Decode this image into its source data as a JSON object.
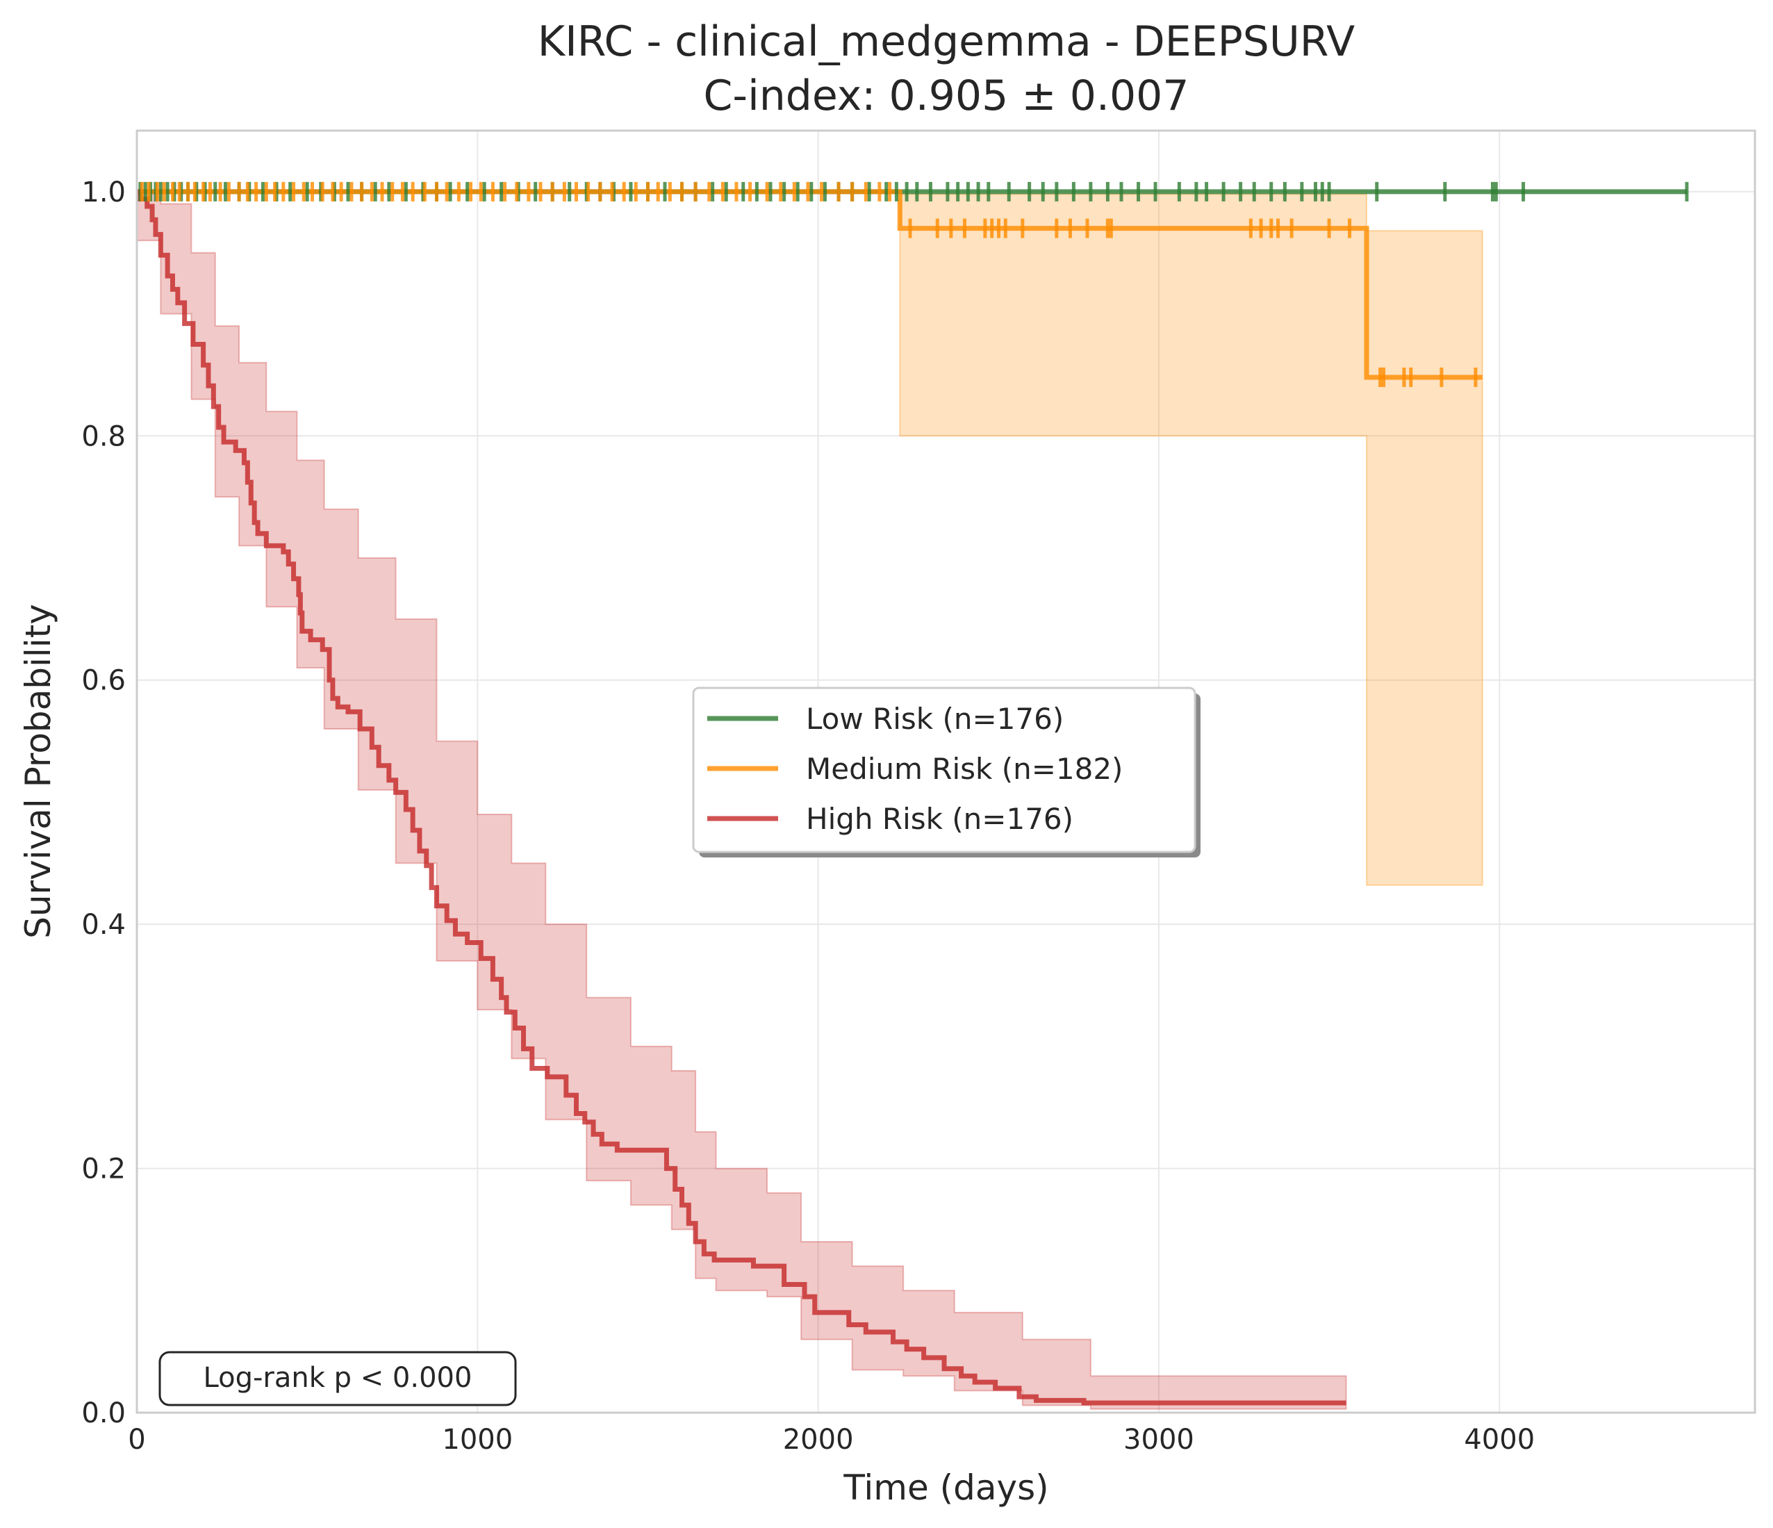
{
  "chart_data": {
    "type": "line",
    "title": "KIRC - clinical_medgemma - DEEPSURV",
    "subtitle": "C-index: 0.905 ± 0.007",
    "xlabel": "Time (days)",
    "ylabel": "Survival Probability",
    "xlim": [
      0,
      4750
    ],
    "ylim": [
      0,
      1.05
    ],
    "x_ticks": [
      0,
      1000,
      2000,
      3000,
      4000
    ],
    "x_tick_labels": [
      "0",
      "1000",
      "2000",
      "3000",
      "4000"
    ],
    "y_ticks": [
      0,
      0.2,
      0.4,
      0.6,
      0.8,
      1.0
    ],
    "y_tick_labels": [
      "0.0",
      "0.2",
      "0.4",
      "0.6",
      "0.8",
      "1.0"
    ],
    "grid": true,
    "legend_position": "center",
    "annotation": "Log-rank p < 0.000",
    "series": [
      {
        "name": "Low Risk (n=176)",
        "color": "#2e7d32",
        "steps": [
          [
            0,
            1.0
          ],
          [
            4550,
            1.0
          ]
        ],
        "ci": [],
        "censor_times": [
          10,
          25,
          40,
          55,
          70,
          90,
          110,
          130,
          150,
          175,
          200,
          230,
          260,
          300,
          330,
          370,
          410,
          450,
          500,
          540,
          580,
          620,
          660,
          700,
          740,
          790,
          840,
          880,
          920,
          970,
          1020,
          1070,
          1120,
          1170,
          1220,
          1270,
          1320,
          1360,
          1400,
          1450,
          1500,
          1550,
          1600,
          1640,
          1690,
          1730,
          1780,
          1820,
          1860,
          1900,
          1940,
          1980,
          2020,
          2060,
          2100,
          2150,
          2200,
          2230,
          2260,
          2290,
          2330,
          2380,
          2410,
          2440,
          2470,
          2500,
          2560,
          2620,
          2660,
          2700,
          2750,
          2800,
          2850,
          2890,
          2940,
          2990,
          3060,
          3110,
          3140,
          3190,
          3240,
          3280,
          3330,
          3370,
          3420,
          3460,
          3480,
          3500,
          3640,
          3840,
          3980,
          3990,
          4070,
          4550
        ]
      },
      {
        "name": "Medium Risk (n=182)",
        "color": "#ff8c00",
        "steps": [
          [
            0,
            1.0
          ],
          [
            2240,
            1.0
          ],
          [
            2240,
            0.97
          ],
          [
            3610,
            0.97
          ],
          [
            3610,
            0.848
          ],
          [
            3950,
            0.848
          ]
        ],
        "ci": [
          [
            2240,
            0.8,
            0.998
          ],
          [
            3610,
            0.8,
            0.998
          ],
          [
            3610,
            0.432,
            0.968
          ],
          [
            3950,
            0.432,
            0.968
          ]
        ],
        "censor_times": [
          15,
          35,
          60,
          80,
          105,
          125,
          150,
          170,
          195,
          215,
          245,
          270,
          300,
          325,
          350,
          380,
          405,
          430,
          460,
          490,
          515,
          545,
          575,
          600,
          630,
          660,
          690,
          720,
          750,
          780,
          810,
          845,
          880,
          910,
          945,
          980,
          1010,
          1045,
          1080,
          1115,
          1150,
          1185,
          1220,
          1255,
          1290,
          1325,
          1360,
          1395,
          1430,
          1465,
          1500,
          1530,
          1565,
          1600,
          1640,
          1680,
          1720,
          1760,
          1800,
          1850,
          1890,
          1930,
          1970,
          2010,
          2060,
          2100,
          2140,
          2180,
          2210,
          2270,
          2350,
          2390,
          2430,
          2490,
          2510,
          2530,
          2550,
          2600,
          2700,
          2740,
          2790,
          2850,
          2860,
          3270,
          3300,
          3330,
          3350,
          3390,
          3500,
          3560,
          3650,
          3660,
          3720,
          3740,
          3830,
          3930
        ]
      },
      {
        "name": "High Risk (n=176)",
        "color": "#c62828",
        "steps": [
          [
            0,
            1.0
          ],
          [
            10,
            0.994
          ],
          [
            30,
            0.988
          ],
          [
            45,
            0.977
          ],
          [
            55,
            0.965
          ],
          [
            70,
            0.948
          ],
          [
            90,
            0.931
          ],
          [
            105,
            0.92
          ],
          [
            120,
            0.909
          ],
          [
            140,
            0.892
          ],
          [
            165,
            0.875
          ],
          [
            195,
            0.858
          ],
          [
            210,
            0.841
          ],
          [
            225,
            0.824
          ],
          [
            240,
            0.807
          ],
          [
            255,
            0.795
          ],
          [
            290,
            0.788
          ],
          [
            315,
            0.778
          ],
          [
            325,
            0.762
          ],
          [
            335,
            0.745
          ],
          [
            345,
            0.729
          ],
          [
            355,
            0.72
          ],
          [
            380,
            0.71
          ],
          [
            430,
            0.705
          ],
          [
            445,
            0.695
          ],
          [
            460,
            0.683
          ],
          [
            475,
            0.67
          ],
          [
            480,
            0.655
          ],
          [
            485,
            0.64
          ],
          [
            510,
            0.633
          ],
          [
            545,
            0.625
          ],
          [
            565,
            0.6
          ],
          [
            575,
            0.585
          ],
          [
            590,
            0.578
          ],
          [
            620,
            0.574
          ],
          [
            655,
            0.56
          ],
          [
            690,
            0.545
          ],
          [
            710,
            0.53
          ],
          [
            740,
            0.518
          ],
          [
            760,
            0.508
          ],
          [
            790,
            0.494
          ],
          [
            810,
            0.477
          ],
          [
            830,
            0.46
          ],
          [
            850,
            0.448
          ],
          [
            865,
            0.43
          ],
          [
            880,
            0.415
          ],
          [
            910,
            0.403
          ],
          [
            935,
            0.392
          ],
          [
            970,
            0.385
          ],
          [
            1010,
            0.372
          ],
          [
            1045,
            0.355
          ],
          [
            1070,
            0.34
          ],
          [
            1085,
            0.328
          ],
          [
            1110,
            0.315
          ],
          [
            1135,
            0.298
          ],
          [
            1160,
            0.282
          ],
          [
            1205,
            0.275
          ],
          [
            1260,
            0.26
          ],
          [
            1290,
            0.245
          ],
          [
            1315,
            0.238
          ],
          [
            1340,
            0.228
          ],
          [
            1365,
            0.22
          ],
          [
            1410,
            0.215
          ],
          [
            1555,
            0.2
          ],
          [
            1580,
            0.183
          ],
          [
            1600,
            0.17
          ],
          [
            1620,
            0.155
          ],
          [
            1640,
            0.14
          ],
          [
            1665,
            0.13
          ],
          [
            1695,
            0.125
          ],
          [
            1810,
            0.12
          ],
          [
            1900,
            0.105
          ],
          [
            1960,
            0.095
          ],
          [
            1990,
            0.082
          ],
          [
            2090,
            0.072
          ],
          [
            2140,
            0.066
          ],
          [
            2220,
            0.058
          ],
          [
            2260,
            0.052
          ],
          [
            2310,
            0.045
          ],
          [
            2370,
            0.036
          ],
          [
            2420,
            0.03
          ],
          [
            2460,
            0.025
          ],
          [
            2520,
            0.02
          ],
          [
            2590,
            0.013
          ],
          [
            2640,
            0.01
          ],
          [
            2780,
            0.008
          ],
          [
            3550,
            0.008
          ]
        ],
        "ci": [
          [
            0,
            0.96,
            1.0
          ],
          [
            70,
            0.9,
            0.99
          ],
          [
            160,
            0.83,
            0.95
          ],
          [
            230,
            0.75,
            0.89
          ],
          [
            300,
            0.71,
            0.86
          ],
          [
            380,
            0.66,
            0.82
          ],
          [
            470,
            0.61,
            0.78
          ],
          [
            550,
            0.56,
            0.74
          ],
          [
            650,
            0.51,
            0.7
          ],
          [
            760,
            0.45,
            0.65
          ],
          [
            880,
            0.37,
            0.55
          ],
          [
            1000,
            0.33,
            0.49
          ],
          [
            1100,
            0.29,
            0.45
          ],
          [
            1200,
            0.24,
            0.4
          ],
          [
            1320,
            0.19,
            0.34
          ],
          [
            1450,
            0.17,
            0.3
          ],
          [
            1570,
            0.15,
            0.28
          ],
          [
            1640,
            0.11,
            0.23
          ],
          [
            1700,
            0.1,
            0.2
          ],
          [
            1850,
            0.095,
            0.18
          ],
          [
            1950,
            0.06,
            0.14
          ],
          [
            2100,
            0.035,
            0.12
          ],
          [
            2250,
            0.03,
            0.1
          ],
          [
            2400,
            0.018,
            0.082
          ],
          [
            2600,
            0.006,
            0.06
          ],
          [
            2800,
            0.003,
            0.03
          ],
          [
            3550,
            0.003,
            0.03
          ]
        ],
        "censor_times": []
      }
    ]
  }
}
